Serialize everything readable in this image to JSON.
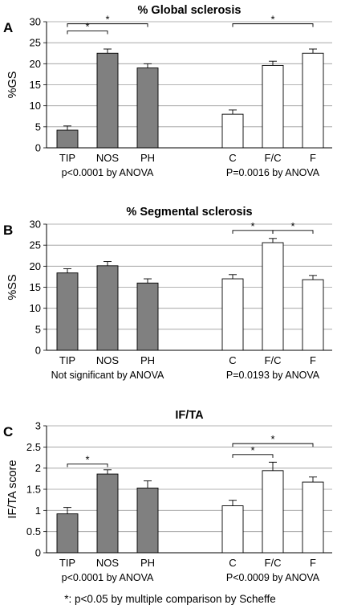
{
  "footnote": "*: p<0.05 by multiple comparison by Scheffe",
  "colors": {
    "group1": "#808080",
    "group2": "#ffffff",
    "stroke": "#000000",
    "grid": "#9a9a9a"
  },
  "chart_data": [
    {
      "panel": "A",
      "type": "bar",
      "title": "% Global sclerosis",
      "ylabel": "%GS",
      "ylim": [
        0,
        30
      ],
      "yticks": [
        0,
        5,
        10,
        15,
        20,
        25,
        30
      ],
      "grid": true,
      "groups": [
        {
          "categories": [
            "TIP",
            "NOS",
            "PH"
          ],
          "values": [
            4.2,
            22.5,
            19.0
          ],
          "errors": [
            1.0,
            1.0,
            1.0
          ],
          "fill": "gray",
          "stat": "p<0.0001 by ANOVA"
        },
        {
          "categories": [
            "C",
            "F/C",
            "F"
          ],
          "values": [
            8.0,
            19.6,
            22.5
          ],
          "errors": [
            1.0,
            1.0,
            1.0
          ],
          "fill": "white",
          "stat": "P=0.0016 by ANOVA"
        }
      ],
      "significance": [
        {
          "from": "TIP",
          "to": "NOS",
          "level": 27.8,
          "label": "*"
        },
        {
          "from": "TIP",
          "to": "PH",
          "level": 29.5,
          "label": "*"
        },
        {
          "from": "C",
          "to": "F",
          "level": 29.5,
          "label": "*"
        }
      ]
    },
    {
      "panel": "B",
      "type": "bar",
      "title": "% Segmental sclerosis",
      "ylabel": "%SS",
      "ylim": [
        0,
        30
      ],
      "yticks": [
        0,
        5,
        10,
        15,
        20,
        25,
        30
      ],
      "grid": true,
      "groups": [
        {
          "categories": [
            "TIP",
            "NOS",
            "PH"
          ],
          "values": [
            18.4,
            20.1,
            16.0
          ],
          "errors": [
            1.0,
            1.0,
            1.0
          ],
          "fill": "gray",
          "stat": "Not significant by ANOVA"
        },
        {
          "categories": [
            "C",
            "F/C",
            "F"
          ],
          "values": [
            17.0,
            25.6,
            16.8
          ],
          "errors": [
            1.0,
            1.0,
            1.0
          ],
          "fill": "white",
          "stat": "P=0.0193 by ANOVA"
        }
      ],
      "significance": [
        {
          "from": "C",
          "to": "F/C",
          "level": 28.5,
          "label": "*"
        },
        {
          "from": "F/C",
          "to": "F",
          "level": 28.5,
          "label": "*"
        }
      ]
    },
    {
      "panel": "C",
      "type": "bar",
      "title": "IF/TA",
      "ylabel": "IF/TA score",
      "ylim": [
        0,
        3
      ],
      "yticks": [
        0,
        0.5,
        1,
        1.5,
        2,
        2.5,
        3
      ],
      "grid": true,
      "groups": [
        {
          "categories": [
            "TIP",
            "NOS",
            "PH"
          ],
          "values": [
            0.92,
            1.86,
            1.53
          ],
          "errors": [
            0.15,
            0.1,
            0.17
          ],
          "fill": "gray",
          "stat": "p<0.0001 by ANOVA"
        },
        {
          "categories": [
            "C",
            "F/C",
            "F"
          ],
          "values": [
            1.11,
            1.94,
            1.67
          ],
          "errors": [
            0.13,
            0.2,
            0.12
          ],
          "fill": "white",
          "stat": "P<0.0009 by ANOVA"
        }
      ],
      "significance": [
        {
          "from": "TIP",
          "to": "NOS",
          "level": 2.1,
          "label": "*"
        },
        {
          "from": "C",
          "to": "F/C",
          "level": 2.32,
          "label": "*"
        },
        {
          "from": "C",
          "to": "F",
          "level": 2.58,
          "label": "*"
        }
      ]
    }
  ]
}
